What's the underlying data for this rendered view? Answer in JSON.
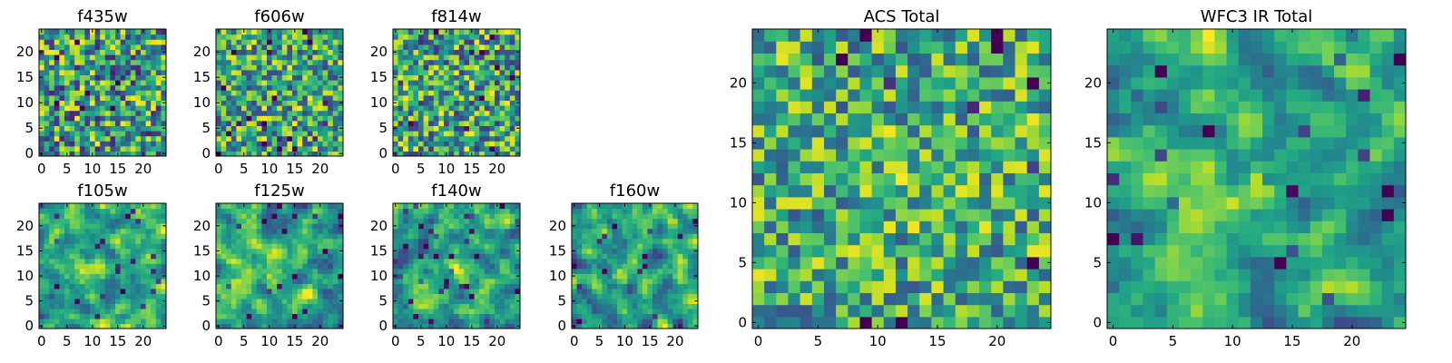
{
  "chart_data": [
    {
      "type": "heatmap",
      "title": "f435w",
      "rows": 25,
      "cols": 25,
      "seed": 11,
      "smooth": 0,
      "base": 0.55,
      "amp": 0.9,
      "hot_spots": [],
      "x_ticks": [
        "0",
        "5",
        "10",
        "15",
        "20"
      ],
      "y_ticks": [
        "0",
        "5",
        "10",
        "15",
        "20"
      ],
      "xlim": [
        -0.5,
        24.5
      ],
      "ylim": [
        -0.5,
        24.5
      ],
      "colormap": "viridis"
    },
    {
      "type": "heatmap",
      "title": "f606w",
      "rows": 25,
      "cols": 25,
      "seed": 23,
      "smooth": 0,
      "base": 0.6,
      "amp": 0.8,
      "hot_spots": [],
      "x_ticks": [
        "0",
        "5",
        "10",
        "15",
        "20"
      ],
      "y_ticks": [
        "0",
        "5",
        "10",
        "15",
        "20"
      ],
      "xlim": [
        -0.5,
        24.5
      ],
      "ylim": [
        -0.5,
        24.5
      ],
      "colormap": "viridis"
    },
    {
      "type": "heatmap",
      "title": "f814w",
      "rows": 25,
      "cols": 25,
      "seed": 37,
      "smooth": 0,
      "base": 0.58,
      "amp": 0.85,
      "hot_spots": [],
      "x_ticks": [
        "0",
        "5",
        "10",
        "15",
        "20"
      ],
      "y_ticks": [
        "0",
        "5",
        "10",
        "15",
        "20"
      ],
      "xlim": [
        -0.5,
        24.5
      ],
      "ylim": [
        -0.5,
        24.5
      ],
      "colormap": "viridis"
    },
    {
      "type": "heatmap",
      "title": "f105w",
      "rows": 25,
      "cols": 25,
      "seed": 41,
      "smooth": 1,
      "base": 0.6,
      "amp": 1.4,
      "hot_spots": [
        [
          10,
          12,
          0.25
        ]
      ],
      "x_ticks": [
        "0",
        "5",
        "10",
        "15",
        "20"
      ],
      "y_ticks": [
        "0",
        "5",
        "10",
        "15",
        "20"
      ],
      "xlim": [
        -0.5,
        24.5
      ],
      "ylim": [
        -0.5,
        24.5
      ],
      "colormap": "viridis"
    },
    {
      "type": "heatmap",
      "title": "f125w",
      "rows": 25,
      "cols": 25,
      "seed": 53,
      "smooth": 1,
      "base": 0.6,
      "amp": 1.4,
      "hot_spots": [
        [
          10,
          12,
          0.2
        ]
      ],
      "x_ticks": [
        "0",
        "5",
        "10",
        "15",
        "20"
      ],
      "y_ticks": [
        "0",
        "5",
        "10",
        "15",
        "20"
      ],
      "xlim": [
        -0.5,
        24.5
      ],
      "ylim": [
        -0.5,
        24.5
      ],
      "colormap": "viridis"
    },
    {
      "type": "heatmap",
      "title": "f140w",
      "rows": 25,
      "cols": 25,
      "seed": 67,
      "smooth": 1,
      "base": 0.58,
      "amp": 1.4,
      "hot_spots": [
        [
          11,
          12,
          0.2
        ]
      ],
      "x_ticks": [
        "0",
        "5",
        "10",
        "15",
        "20"
      ],
      "y_ticks": [
        "0",
        "5",
        "10",
        "15",
        "20"
      ],
      "xlim": [
        -0.5,
        24.5
      ],
      "ylim": [
        -0.5,
        24.5
      ],
      "colormap": "viridis"
    },
    {
      "type": "heatmap",
      "title": "f160w",
      "rows": 25,
      "cols": 25,
      "seed": 79,
      "smooth": 1,
      "base": 0.58,
      "amp": 1.5,
      "hot_spots": [
        [
          10,
          12,
          0.22
        ]
      ],
      "x_ticks": [
        "0",
        "5",
        "10",
        "15",
        "20"
      ],
      "y_ticks": [
        "0",
        "5",
        "10",
        "15",
        "20"
      ],
      "xlim": [
        -0.5,
        24.5
      ],
      "ylim": [
        -0.5,
        24.5
      ],
      "colormap": "viridis"
    },
    {
      "type": "heatmap",
      "title": "ACS Total",
      "rows": 25,
      "cols": 25,
      "seed": 97,
      "smooth": 0,
      "base": 0.62,
      "amp": 0.7,
      "hot_spots": [
        [
          12,
          12,
          0.12
        ]
      ],
      "x_ticks": [
        "0",
        "5",
        "10",
        "15",
        "20"
      ],
      "y_ticks": [
        "0",
        "5",
        "10",
        "15",
        "20"
      ],
      "xlim": [
        -0.5,
        24.5
      ],
      "ylim": [
        -0.5,
        24.5
      ],
      "colormap": "viridis"
    },
    {
      "type": "heatmap",
      "title": "WFC3 IR Total",
      "rows": 25,
      "cols": 25,
      "seed": 101,
      "smooth": 1,
      "base": 0.6,
      "amp": 1.3,
      "hot_spots": [
        [
          12,
          11,
          0.28
        ]
      ],
      "x_ticks": [
        "0",
        "5",
        "10",
        "15",
        "20"
      ],
      "y_ticks": [
        "0",
        "5",
        "10",
        "15",
        "20"
      ],
      "xlim": [
        -0.5,
        24.5
      ],
      "ylim": [
        -0.5,
        24.5
      ],
      "colormap": "viridis"
    }
  ]
}
